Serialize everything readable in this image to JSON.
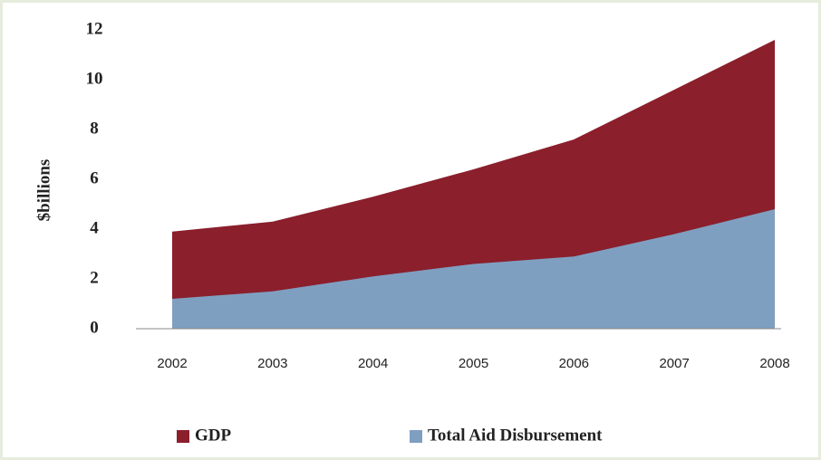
{
  "chart_data": {
    "type": "area",
    "y_label": "$billions",
    "categories": [
      "2002",
      "2003",
      "2004",
      "2005",
      "2006",
      "2007",
      "2008"
    ],
    "series": [
      {
        "name": "GDP",
        "color": "#8b1f2c",
        "values": [
          3.9,
          4.3,
          5.3,
          6.4,
          7.6,
          9.6,
          11.6
        ]
      },
      {
        "name": "Total Aid Disbursement",
        "color": "#7f9fc1",
        "values": [
          1.2,
          1.5,
          2.1,
          2.6,
          2.9,
          3.8,
          4.8
        ]
      }
    ],
    "ylim": [
      0,
      12
    ],
    "yticks": [
      0,
      2,
      4,
      6,
      8,
      10,
      12
    ],
    "grid": false,
    "legend": "bottom"
  }
}
